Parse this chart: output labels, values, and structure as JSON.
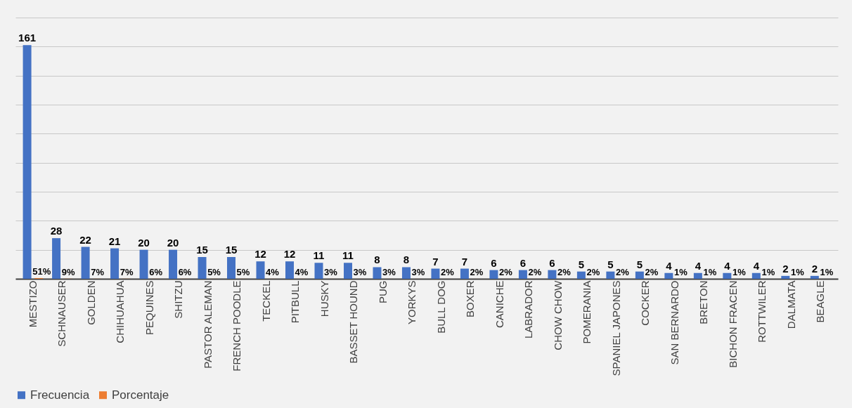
{
  "chart_data": {
    "type": "bar",
    "categories": [
      "MESTIZO",
      "SCHNAUSER",
      "GOLDEN",
      "CHIHUAHUA",
      "PEQUINES",
      "SHITZU",
      "PASTOR ALEMAN",
      "FRENCH POODLE",
      "TECKEL",
      "PITBULL",
      "HUSKY",
      "BASSET HOUND",
      "PUG",
      "YORKYS",
      "BULL DOG",
      "BOXER",
      "CANICHE",
      "LABRADOR",
      "CHOW CHOW",
      "POMERANIA",
      "SPANIEL JAPONES",
      "COCKER",
      "SAN BERNARDO",
      "BRETON",
      "BICHON FRACEN",
      "ROTTWILER",
      "DALMATA",
      "BEAGLE"
    ],
    "series": [
      {
        "name": "Frecuencia",
        "color": "#4472c4",
        "values": [
          161,
          28,
          22,
          21,
          20,
          20,
          15,
          15,
          12,
          12,
          11,
          11,
          8,
          8,
          7,
          7,
          6,
          6,
          6,
          5,
          5,
          5,
          4,
          4,
          4,
          4,
          2,
          2
        ],
        "value_labels": [
          "161",
          "28",
          "22",
          "21",
          "20",
          "20",
          "15",
          "15",
          "12",
          "12",
          "11",
          "11",
          "8",
          "8",
          "7",
          "7",
          "6",
          "6",
          "6",
          "5",
          "5",
          "5",
          "4",
          "4",
          "4",
          "4",
          "2",
          "2"
        ]
      },
      {
        "name": "Porcentaje",
        "color": "#ed7d31",
        "values": [
          0.51,
          0.09,
          0.07,
          0.07,
          0.06,
          0.06,
          0.05,
          0.05,
          0.04,
          0.04,
          0.03,
          0.03,
          0.03,
          0.03,
          0.02,
          0.02,
          0.02,
          0.02,
          0.02,
          0.02,
          0.02,
          0.02,
          0.01,
          0.01,
          0.01,
          0.01,
          0.01,
          0.01
        ],
        "value_labels": [
          "51%",
          "9%",
          "7%",
          "7%",
          "6%",
          "6%",
          "5%",
          "5%",
          "4%",
          "4%",
          "3%",
          "3%",
          "3%",
          "3%",
          "2%",
          "2%",
          "2%",
          "2%",
          "2%",
          "2%",
          "2%",
          "2%",
          "1%",
          "1%",
          "1%",
          "1%",
          "1%",
          "1%"
        ]
      }
    ],
    "ylim": [
      0,
      180
    ],
    "yticks": [
      {
        "value": 0,
        "label": null
      },
      {
        "value": 20,
        "label": null
      },
      {
        "value": 40,
        "label": null
      },
      {
        "value": 60,
        "label": null
      },
      {
        "value": 80,
        "label": null
      },
      {
        "value": 100,
        "label": null
      },
      {
        "value": 120,
        "label": null
      },
      {
        "value": 140,
        "label": null
      },
      {
        "value": 160,
        "label": null
      },
      {
        "value": 180,
        "label": null
      }
    ],
    "grid": "y",
    "legend": "bottom"
  }
}
